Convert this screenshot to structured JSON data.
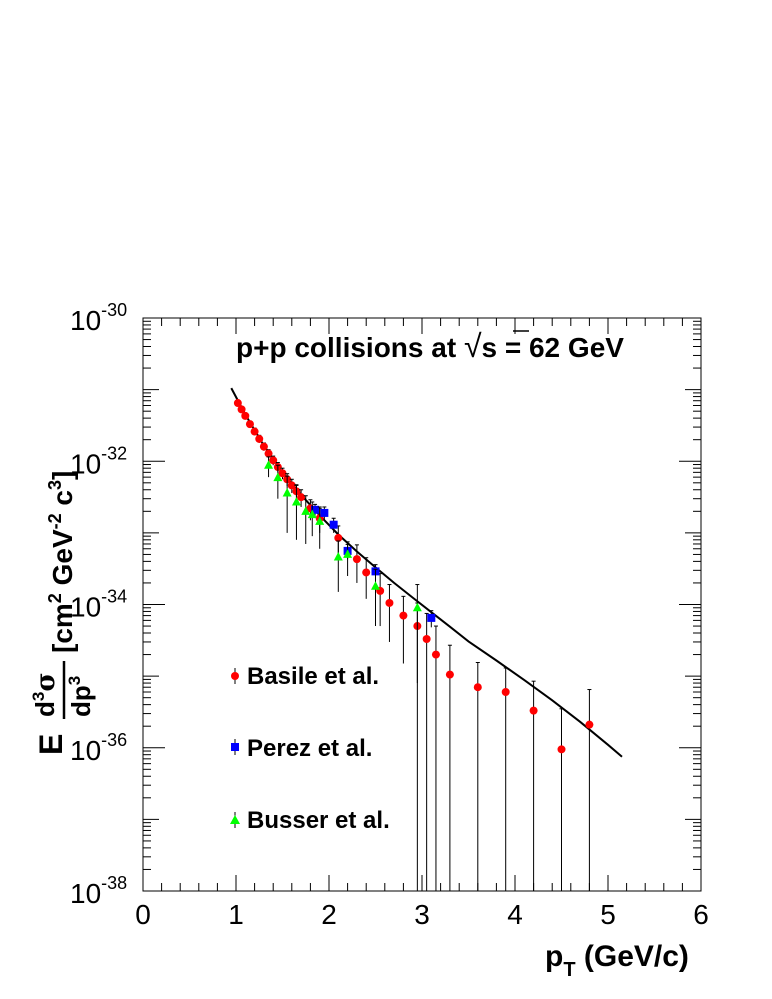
{
  "chart_data": {
    "type": "scatter",
    "title": {
      "prefix": "p+p collisions at ",
      "sqrt_symbol": "√",
      "s": "s",
      "suffix": " = 62 GeV"
    },
    "xlabel": {
      "main": "p",
      "sub": "T",
      "rest": " (GeV/c)"
    },
    "ylabel": {
      "E": "E",
      "num": "d",
      "num_sup": "3",
      "num_sym": "σ",
      "den": "dp",
      "den_sup": "3",
      "units_open": "[cm",
      "units_sup1": "2",
      "units_mid": " GeV",
      "units_sup2": "-2",
      "units_c": " c",
      "units_sup3": "3",
      "units_close": "]"
    },
    "xlim": [
      0,
      6
    ],
    "ylim_log10": [
      -38,
      -30
    ],
    "log_y": true,
    "grid": false,
    "x_ticks": [
      {
        "v": 0,
        "label": "0"
      },
      {
        "v": 1,
        "label": "1"
      },
      {
        "v": 2,
        "label": "2"
      },
      {
        "v": 3,
        "label": "3"
      },
      {
        "v": 4,
        "label": "4"
      },
      {
        "v": 5,
        "label": "5"
      },
      {
        "v": 6,
        "label": "6"
      }
    ],
    "y_ticks": [
      {
        "exp": -30,
        "base": "10",
        "sup": "-30"
      },
      {
        "exp": -32,
        "base": "10",
        "sup": "-32"
      },
      {
        "exp": -34,
        "base": "10",
        "sup": "-34"
      },
      {
        "exp": -36,
        "base": "10",
        "sup": "-36"
      },
      {
        "exp": -38,
        "base": "10",
        "sup": "-38"
      }
    ],
    "legend_position": "left-middle",
    "series": [
      {
        "name": "Basile et al.",
        "color": "#ff0000",
        "marker": "circle",
        "points": [
          {
            "x": 1.02,
            "y": 6.5e-32,
            "lo": 6e-32,
            "hi": 7e-32
          },
          {
            "x": 1.06,
            "y": 5.3e-32,
            "lo": 4.9e-32,
            "hi": 5.7e-32
          },
          {
            "x": 1.1,
            "y": 4.3e-32,
            "lo": 4e-32,
            "hi": 4.7e-32
          },
          {
            "x": 1.15,
            "y": 3.3e-32,
            "lo": 3e-32,
            "hi": 3.6e-32
          },
          {
            "x": 1.2,
            "y": 2.6e-32,
            "lo": 2.3e-32,
            "hi": 2.9e-32
          },
          {
            "x": 1.25,
            "y": 2.05e-32,
            "lo": 1.8e-32,
            "hi": 2.3e-32
          },
          {
            "x": 1.3,
            "y": 1.6e-32,
            "lo": 1.4e-32,
            "hi": 1.8e-32
          },
          {
            "x": 1.35,
            "y": 1.28e-32,
            "lo": 1.1e-32,
            "hi": 1.45e-32
          },
          {
            "x": 1.4,
            "y": 1.03e-32,
            "lo": 8.8e-33,
            "hi": 1.18e-32
          },
          {
            "x": 1.45,
            "y": 8.3e-33,
            "lo": 7e-33,
            "hi": 9.6e-33
          },
          {
            "x": 1.5,
            "y": 6.8e-33,
            "lo": 5.6e-33,
            "hi": 8e-33
          },
          {
            "x": 1.55,
            "y": 5.6e-33,
            "lo": 4.5e-33,
            "hi": 6.7e-33
          },
          {
            "x": 1.6,
            "y": 4.6e-33,
            "lo": 3.6e-33,
            "hi": 5.6e-33
          },
          {
            "x": 1.65,
            "y": 3.8e-33,
            "lo": 2.9e-33,
            "hi": 4.7e-33
          },
          {
            "x": 1.7,
            "y": 3.15e-33,
            "lo": 2.3e-33,
            "hi": 4e-33
          },
          {
            "x": 1.8,
            "y": 2.2e-33,
            "lo": 1.5e-33,
            "hi": 2.9e-33
          },
          {
            "x": 1.9,
            "y": 1.6e-33,
            "lo": 1e-33,
            "hi": 2.2e-33
          },
          {
            "x": 2.1,
            "y": 8.5e-34,
            "lo": 4.8e-34,
            "hi": 1.25e-33
          },
          {
            "x": 2.3,
            "y": 4.3e-34,
            "lo": 2e-34,
            "hi": 6.8e-34
          },
          {
            "x": 2.4,
            "y": 2.8e-34,
            "lo": 1.2e-34,
            "hi": 4.5e-34
          },
          {
            "x": 2.55,
            "y": 1.55e-34,
            "lo": 5e-35,
            "hi": 2.7e-34
          },
          {
            "x": 2.65,
            "y": 1.05e-34,
            "lo": 3e-35,
            "hi": 1.9e-34
          },
          {
            "x": 2.8,
            "y": 7e-35,
            "lo": 1.5e-35,
            "hi": 1.3e-34
          },
          {
            "x": 2.95,
            "y": 5e-35,
            "lo": 8e-36,
            "hi": 1.05e-34
          },
          {
            "x": 3.05,
            "y": 3.3e-35,
            "lo": 1e-40,
            "hi": 7.5e-35
          },
          {
            "x": 3.15,
            "y": 2e-35,
            "lo": 1e-40,
            "hi": 5e-35
          },
          {
            "x": 3.3,
            "y": 1.05e-35,
            "lo": 1e-40,
            "hi": 2.7e-35
          },
          {
            "x": 3.6,
            "y": 7e-36,
            "lo": 1e-40,
            "hi": 1.55e-35
          },
          {
            "x": 3.9,
            "y": 6e-36,
            "lo": 1e-40,
            "hi": 1.3e-35
          },
          {
            "x": 4.2,
            "y": 3.3e-36,
            "lo": 1e-40,
            "hi": 8.5e-36
          },
          {
            "x": 4.5,
            "y": 9.5e-37,
            "lo": 1e-40,
            "hi": 3.5e-36
          },
          {
            "x": 4.8,
            "y": 2.1e-36,
            "lo": 1e-40,
            "hi": 6.5e-36
          }
        ]
      },
      {
        "name": "Perez et al.",
        "color": "#0000ff",
        "marker": "square",
        "points": [
          {
            "x": 1.85,
            "y": 2.1e-33,
            "lo": 1.7e-33,
            "hi": 2.5e-33
          },
          {
            "x": 1.95,
            "y": 1.9e-33,
            "lo": 1.55e-33,
            "hi": 2.3e-33
          },
          {
            "x": 2.05,
            "y": 1.3e-33,
            "lo": 1e-33,
            "hi": 1.6e-33
          },
          {
            "x": 2.2,
            "y": 5.6e-34,
            "lo": 4.3e-34,
            "hi": 6.9e-34
          },
          {
            "x": 2.5,
            "y": 2.9e-34,
            "lo": 2.2e-34,
            "hi": 3.6e-34
          },
          {
            "x": 3.1,
            "y": 6.5e-35,
            "lo": 4.8e-35,
            "hi": 8.2e-35
          }
        ]
      },
      {
        "name": "Busser et al.",
        "color": "#00ff00",
        "marker": "triangle",
        "points": [
          {
            "x": 1.35,
            "y": 8.8e-33,
            "lo": 6e-33,
            "hi": 1.15e-32
          },
          {
            "x": 1.45,
            "y": 5.9e-33,
            "lo": 3e-33,
            "hi": 8.8e-33
          },
          {
            "x": 1.55,
            "y": 3.6e-33,
            "lo": 1e-33,
            "hi": 6.2e-33
          },
          {
            "x": 1.65,
            "y": 2.7e-33,
            "lo": 8e-34,
            "hi": 4.6e-33
          },
          {
            "x": 1.75,
            "y": 2e-33,
            "lo": 7e-34,
            "hi": 3.3e-33
          },
          {
            "x": 1.82,
            "y": 1.8e-33,
            "lo": 9e-34,
            "hi": 2.7e-33
          },
          {
            "x": 1.9,
            "y": 1.45e-33,
            "lo": 6e-34,
            "hi": 2.3e-33
          },
          {
            "x": 2.1,
            "y": 4.6e-34,
            "lo": 1.5e-34,
            "hi": 7.7e-34
          },
          {
            "x": 2.2,
            "y": 5e-34,
            "lo": 2.5e-34,
            "hi": 7.5e-34
          },
          {
            "x": 2.5,
            "y": 1.8e-34,
            "lo": 5e-35,
            "hi": 3.1e-34
          },
          {
            "x": 2.95,
            "y": 9e-35,
            "lo": 1e-40,
            "hi": 1.9e-34
          }
        ]
      }
    ],
    "fit_curve": {
      "color": "#000000",
      "points": [
        {
          "x": 0.95,
          "y": 1.05e-31
        },
        {
          "x": 1.1,
          "y": 4.5e-32
        },
        {
          "x": 1.3,
          "y": 1.65e-32
        },
        {
          "x": 1.5,
          "y": 7e-33
        },
        {
          "x": 1.7,
          "y": 3.4e-33
        },
        {
          "x": 1.9,
          "y": 1.75e-33
        },
        {
          "x": 2.1,
          "y": 9.5e-34
        },
        {
          "x": 2.3,
          "y": 5.5e-34
        },
        {
          "x": 2.5,
          "y": 3.3e-34
        },
        {
          "x": 2.7,
          "y": 2e-34
        },
        {
          "x": 2.9,
          "y": 1.25e-34
        },
        {
          "x": 3.1,
          "y": 7.8e-35
        },
        {
          "x": 3.3,
          "y": 4.9e-35
        },
        {
          "x": 3.5,
          "y": 3.05e-35
        },
        {
          "x": 3.8,
          "y": 1.65e-35
        },
        {
          "x": 4.1,
          "y": 8.8e-36
        },
        {
          "x": 4.4,
          "y": 4.6e-36
        },
        {
          "x": 4.7,
          "y": 2.3e-36
        },
        {
          "x": 5.0,
          "y": 1.1e-36
        },
        {
          "x": 5.15,
          "y": 7.5e-37
        }
      ]
    }
  }
}
